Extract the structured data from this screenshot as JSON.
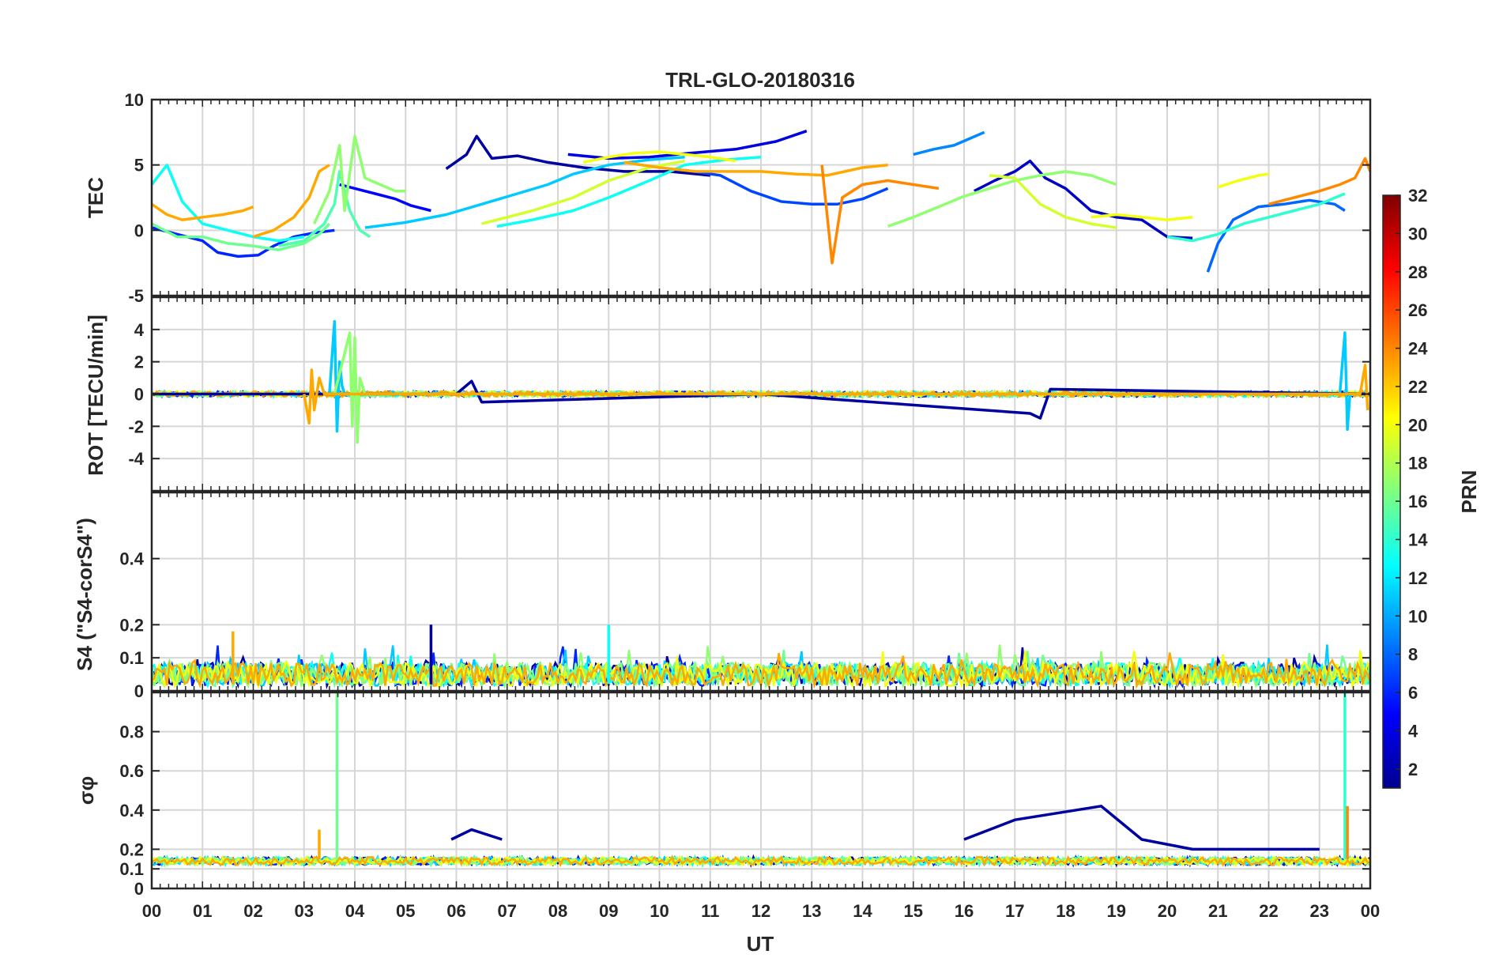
{
  "chart_data": {
    "type": "line",
    "title": "TRL-GLO-20180316",
    "xlabel": "UT",
    "x_range_hours": [
      0,
      24
    ],
    "x_tick_labels": [
      "00",
      "01",
      "02",
      "03",
      "04",
      "05",
      "06",
      "07",
      "08",
      "09",
      "10",
      "11",
      "12",
      "13",
      "14",
      "15",
      "16",
      "17",
      "18",
      "19",
      "20",
      "21",
      "22",
      "23",
      "00"
    ],
    "colorbar": {
      "label": "PRN",
      "range": [
        1,
        32
      ],
      "tick_labels": [
        "2",
        "4",
        "6",
        "8",
        "10",
        "12",
        "14",
        "16",
        "18",
        "20",
        "22",
        "24",
        "26",
        "28",
        "30",
        "32"
      ],
      "colormap": "jet"
    },
    "panels": [
      {
        "name": "TEC",
        "ylabel": "TEC",
        "ylim": [
          -5,
          10
        ],
        "y_ticks": [
          -5,
          0,
          5,
          10
        ],
        "y_tick_labels": [
          "-5",
          "0",
          "5",
          "10"
        ],
        "series": [
          {
            "prn": 2,
            "x": [
              5.8,
              6.2,
              6.4,
              6.7,
              7.2,
              7.8,
              8.5,
              9.3,
              10.2,
              11.0
            ],
            "y": [
              4.7,
              5.8,
              7.2,
              5.5,
              5.7,
              5.2,
              4.8,
              4.5,
              4.5,
              4.2
            ]
          },
          {
            "prn": 3,
            "x": [
              16.2,
              16.6,
              17.0,
              17.3,
              17.6,
              18.0,
              18.5,
              19.0,
              19.5,
              20.0,
              20.5
            ],
            "y": [
              3.0,
              3.8,
              4.5,
              5.3,
              4.0,
              3.2,
              1.5,
              1.0,
              0.8,
              -0.5,
              -0.6
            ]
          },
          {
            "prn": 4,
            "x": [
              8.2,
              9.0,
              9.8,
              10.6,
              11.5,
              12.3,
              12.9
            ],
            "y": [
              5.8,
              5.5,
              5.6,
              5.9,
              6.2,
              6.8,
              7.6
            ]
          },
          {
            "prn": 5,
            "x": [
              3.7,
              4.0,
              4.4,
              4.8,
              5.1,
              5.5
            ],
            "y": [
              3.5,
              3.2,
              2.8,
              2.4,
              1.9,
              1.5
            ]
          },
          {
            "prn": 6,
            "x": [
              0.0,
              0.5,
              1.0,
              1.3,
              1.7,
              2.1,
              2.4,
              2.8,
              3.2,
              3.6
            ],
            "y": [
              0.2,
              -0.3,
              -0.8,
              -1.7,
              -2.0,
              -1.9,
              -1.2,
              -0.5,
              -0.2,
              0.0
            ]
          },
          {
            "prn": 7,
            "x": [
              10.5,
              11.2,
              11.8,
              12.4,
              13.0,
              13.5,
              14.0,
              14.5
            ],
            "y": [
              4.6,
              4.2,
              3.0,
              2.2,
              2.0,
              2.0,
              2.4,
              3.2
            ]
          },
          {
            "prn": 8,
            "x": [
              20.8,
              21.0,
              21.3,
              21.8,
              22.3,
              22.8,
              23.3,
              23.5
            ],
            "y": [
              -3.2,
              -1.0,
              0.8,
              1.8,
              2.0,
              2.3,
              2.0,
              1.5
            ]
          },
          {
            "prn": 9,
            "x": [
              15.0,
              15.4,
              15.8,
              16.1,
              16.4
            ],
            "y": [
              5.8,
              6.2,
              6.5,
              7.0,
              7.5
            ]
          },
          {
            "prn": 11,
            "x": [
              4.2,
              5.0,
              5.8,
              6.5,
              7.2,
              7.8,
              8.3,
              9.0,
              9.8,
              10.5
            ],
            "y": [
              0.2,
              0.6,
              1.2,
              2.0,
              2.8,
              3.5,
              4.3,
              5.0,
              5.4,
              5.6
            ]
          },
          {
            "prn": 13,
            "x": [
              0.0,
              0.3,
              0.6,
              1.0,
              1.5,
              2.0,
              2.5,
              3.0
            ],
            "y": [
              3.5,
              5.0,
              2.2,
              0.5,
              0.0,
              -0.5,
              -0.8,
              -0.5
            ]
          },
          {
            "prn": 13,
            "x": [
              6.8,
              7.5,
              8.3,
              9.0,
              9.8,
              10.5,
              11.3,
              12.0
            ],
            "y": [
              0.3,
              0.8,
              1.5,
              2.5,
              3.8,
              5.0,
              5.4,
              5.6
            ]
          },
          {
            "prn": 14,
            "x": [
              20.0,
              20.5,
              21.0,
              21.5,
              22.0,
              22.5,
              23.0,
              23.5
            ],
            "y": [
              -0.5,
              -0.8,
              -0.3,
              0.5,
              1.0,
              1.5,
              2.0,
              2.8
            ]
          },
          {
            "prn": 15,
            "x": [
              2.5,
              3.0,
              3.4,
              3.6,
              3.7,
              3.9,
              4.1,
              4.3
            ],
            "y": [
              -1.2,
              -0.8,
              0.5,
              2.0,
              4.5,
              1.5,
              0.0,
              -0.5
            ]
          },
          {
            "prn": 16,
            "x": [
              0.0,
              0.5,
              1.0,
              1.5,
              2.0,
              2.5,
              3.0,
              3.3,
              3.5
            ],
            "y": [
              0.5,
              -0.5,
              -0.5,
              -1.0,
              -1.2,
              -1.5,
              -1.0,
              -0.3,
              0.5
            ]
          },
          {
            "prn": 17,
            "x": [
              3.2,
              3.5,
              3.7,
              3.8,
              4.0,
              4.2,
              4.5,
              4.8,
              5.0
            ],
            "y": [
              0.5,
              3.0,
              6.5,
              1.5,
              7.2,
              4.0,
              3.5,
              3.0,
              3.0
            ]
          },
          {
            "prn": 17,
            "x": [
              14.5,
              15.0,
              15.5,
              16.0,
              16.5,
              17.0,
              17.5,
              18.0,
              18.5,
              19.0
            ],
            "y": [
              0.3,
              1.0,
              1.8,
              2.6,
              3.2,
              3.8,
              4.2,
              4.5,
              4.2,
              3.5
            ]
          },
          {
            "prn": 19,
            "x": [
              16.5,
              17.0,
              17.5,
              18.0,
              18.5,
              19.0
            ],
            "y": [
              4.2,
              4.0,
              2.0,
              1.0,
              0.5,
              0.2
            ]
          },
          {
            "prn": 19,
            "x": [
              6.5,
              7.5,
              8.3,
              9.0,
              9.8,
              10.5
            ],
            "y": [
              0.5,
              1.5,
              2.5,
              3.8,
              4.8,
              5.3
            ]
          },
          {
            "prn": 20,
            "x": [
              8.5,
              9.0,
              9.5,
              10.0,
              10.5,
              11.0,
              11.5
            ],
            "y": [
              5.2,
              5.6,
              5.9,
              6.0,
              5.8,
              5.6,
              5.3
            ]
          },
          {
            "prn": 20,
            "x": [
              18.5,
              19.0,
              19.5,
              20.0,
              20.5
            ],
            "y": [
              1.0,
              1.2,
              1.0,
              0.8,
              1.0
            ]
          },
          {
            "prn": 20,
            "x": [
              21.0,
              21.4,
              21.8,
              22.0
            ],
            "y": [
              3.3,
              3.8,
              4.2,
              4.3
            ]
          },
          {
            "prn": 23,
            "x": [
              0.0,
              0.3,
              0.6,
              1.0,
              1.4,
              1.8,
              2.0
            ],
            "y": [
              2.0,
              1.2,
              0.8,
              1.0,
              1.2,
              1.5,
              1.8
            ]
          },
          {
            "prn": 23,
            "x": [
              2.0,
              2.4,
              2.8,
              3.1,
              3.3,
              3.5
            ],
            "y": [
              -0.5,
              0.0,
              1.0,
              2.5,
              4.5,
              5.0
            ]
          },
          {
            "prn": 23,
            "x": [
              9.3,
              10.0,
              10.7,
              11.3,
              12.0,
              12.7,
              13.3,
              14.0,
              14.5
            ],
            "y": [
              5.2,
              4.8,
              4.5,
              4.5,
              4.5,
              4.3,
              4.2,
              4.8,
              5.0
            ]
          },
          {
            "prn": 24,
            "x": [
              13.2,
              13.4,
              13.6,
              14.0,
              14.5,
              15.0,
              15.5
            ],
            "y": [
              5.0,
              -2.5,
              2.5,
              3.5,
              3.8,
              3.5,
              3.2
            ]
          },
          {
            "prn": 24,
            "x": [
              22.0,
              22.5,
              23.0,
              23.4,
              23.7,
              23.9,
              24.0
            ],
            "y": [
              2.0,
              2.5,
              3.0,
              3.5,
              4.0,
              5.5,
              4.5
            ]
          }
        ]
      },
      {
        "name": "ROT",
        "ylabel": "ROT [TECU/min]",
        "ylim": [
          -6,
          6
        ],
        "y_ticks": [
          -4,
          -2,
          0,
          2,
          4
        ],
        "y_tick_labels": [
          "-4",
          "-2",
          "0",
          "2",
          "4"
        ],
        "description_series": "rate of TEC per satellite, near 0 with bursts near 03-04 UT and 23.5 UT",
        "series": [
          {
            "prn": 2,
            "x": [
              0,
              6,
              6.3,
              6.5,
              12,
              17.3,
              17.5,
              17.7,
              24
            ],
            "y": [
              0,
              0,
              0.8,
              -0.5,
              0,
              -1.2,
              -1.5,
              0.3,
              0
            ]
          },
          {
            "prn": 11,
            "x": [
              3.5,
              3.6,
              3.65,
              3.7,
              3.75,
              3.8,
              23.4,
              23.5,
              23.55,
              23.6
            ],
            "y": [
              0,
              4.5,
              -2.3,
              2.0,
              0.5,
              0,
              0,
              3.8,
              -2.2,
              0
            ]
          },
          {
            "prn": 17,
            "x": [
              3.6,
              3.9,
              3.95,
              4.0,
              4.05,
              4.1,
              4.2
            ],
            "y": [
              0,
              3.8,
              -2.0,
              3.5,
              -3.0,
              1.0,
              0
            ]
          },
          {
            "prn": 23,
            "x": [
              3.0,
              3.1,
              3.15,
              3.2,
              3.3,
              3.4,
              23.8,
              23.9,
              23.95
            ],
            "y": [
              0,
              -1.8,
              1.5,
              -1.0,
              1.0,
              0,
              0,
              1.8,
              -1.0
            ]
          }
        ]
      },
      {
        "name": "S4",
        "ylabel": "S4 (\"S4-corS4\")",
        "ylim": [
          0,
          0.6
        ],
        "y_ticks": [
          0,
          0.1,
          0.2,
          0.4
        ],
        "y_tick_labels": [
          "0",
          "0.1",
          "0.2",
          "0.4"
        ],
        "description_series": "noise-level scintillation index, mostly 0.02-0.1 with peaks up to 0.2",
        "series": [
          {
            "prn": 2,
            "x": [
              5.5,
              5.5
            ],
            "y": [
              0.02,
              0.2
            ]
          },
          {
            "prn": 13,
            "x": [
              9.0,
              9.0
            ],
            "y": [
              0.02,
              0.2
            ]
          },
          {
            "prn": 23,
            "x": [
              1.6,
              1.6
            ],
            "y": [
              0.02,
              0.18
            ]
          }
        ]
      },
      {
        "name": "sigma_phi",
        "ylabel": "σφ",
        "ylim": [
          0,
          1
        ],
        "y_ticks": [
          0,
          0.1,
          0.2,
          0.4,
          0.6,
          0.8
        ],
        "y_tick_labels": [
          "0",
          "0.1",
          "0.2",
          "0.4",
          "0.6",
          "0.8"
        ],
        "description_series": "phase scintillation, baseline ~0.12-0.15, bursts at 03.6 UT and 23.5 UT near 1.0",
        "series": [
          {
            "prn": 2,
            "x": [
              5.9,
              6.3,
              6.9
            ],
            "y": [
              0.25,
              0.3,
              0.25
            ]
          },
          {
            "prn": 2,
            "x": [
              16.0,
              17.0,
              18.7,
              19.5,
              20.5,
              22.0,
              23.0
            ],
            "y": [
              0.25,
              0.35,
              0.42,
              0.25,
              0.2,
              0.2,
              0.2
            ]
          },
          {
            "prn": 16,
            "x": [
              3.65,
              3.65
            ],
            "y": [
              0.15,
              1.0
            ]
          },
          {
            "prn": 14,
            "x": [
              23.5,
              23.5
            ],
            "y": [
              0.15,
              1.0
            ]
          },
          {
            "prn": 23,
            "x": [
              3.3,
              3.3
            ],
            "y": [
              0.15,
              0.3
            ]
          },
          {
            "prn": 24,
            "x": [
              23.55,
              23.55
            ],
            "y": [
              0.15,
              0.42
            ]
          }
        ]
      }
    ]
  }
}
